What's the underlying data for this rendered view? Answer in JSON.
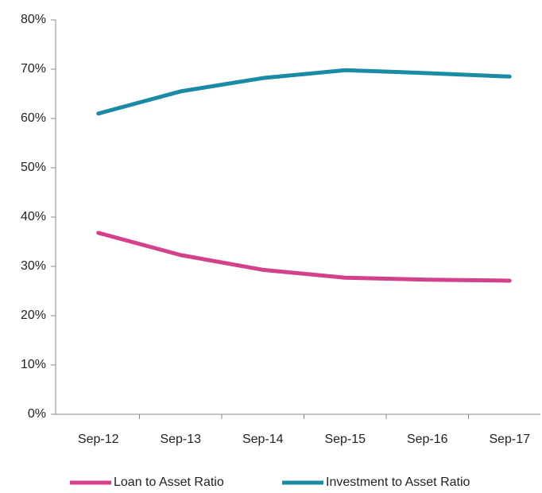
{
  "chart_data": {
    "type": "line",
    "categories": [
      "Sep-12",
      "Sep-13",
      "Sep-14",
      "Sep-15",
      "Sep-16",
      "Sep-17"
    ],
    "series": [
      {
        "name": "Loan to Asset Ratio",
        "color": "#d2418a",
        "values": [
          36.8,
          32.3,
          29.3,
          27.7,
          27.3,
          27.1
        ]
      },
      {
        "name": "Investment to Asset Ratio",
        "color": "#1a8aa5",
        "values": [
          61,
          65.5,
          68.2,
          69.8,
          69.2,
          68.5
        ]
      }
    ],
    "ylim": [
      0,
      80
    ],
    "yticks": [
      {
        "value": 0,
        "label": "0%"
      },
      {
        "value": 10,
        "label": "10%"
      },
      {
        "value": 20,
        "label": "20%"
      },
      {
        "value": 30,
        "label": "30%"
      },
      {
        "value": 40,
        "label": "40%"
      },
      {
        "value": 50,
        "label": "50%"
      },
      {
        "value": 60,
        "label": "60%"
      },
      {
        "value": 70,
        "label": "70%"
      },
      {
        "value": 80,
        "label": "80%"
      }
    ],
    "grid": false,
    "legend": "bottom"
  }
}
